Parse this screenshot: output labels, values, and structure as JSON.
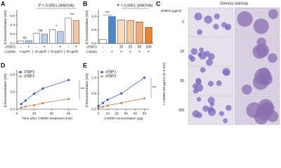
{
  "chart_data": [
    {
      "type": "bar",
      "label": "A",
      "ylabel": "β-hexosaminidase (OD)",
      "anova": "P < 0.0001 (ANOVA)",
      "row_labels": [
        "dTBP2",
        "C48/80"
      ],
      "categories": [
        "-",
        "+",
        "-",
        "+",
        "-",
        "+",
        "-",
        "+"
      ],
      "groups": [
        "0 µg/ml",
        "10 µg/ml",
        "20 µg/ml",
        "50 µg/ml"
      ],
      "values": [
        0.05,
        0.06,
        0.22,
        0.2,
        0.3,
        0.26,
        0.55,
        0.5
      ],
      "colors": [
        "#ffffff",
        "#b9cfee",
        "#ffffff",
        "#b9cfee",
        "#ffffff",
        "#b9cfee",
        "#ffffff",
        "#f5c9a0"
      ],
      "significance": [
        "ns",
        "ns",
        "*",
        "***"
      ],
      "ylim": [
        0,
        0.7
      ],
      "yticks": [
        {
          "value": 0,
          "label": "0.0"
        },
        0.2,
        0.4,
        0.6
      ]
    },
    {
      "type": "bar",
      "label": "B",
      "ylabel": "β-hexosaminidase (OD)",
      "anova": "P < 0.0001 (ANOVA)",
      "row_labels": [
        "dTBP2",
        "C48/80"
      ],
      "categories": [
        "-",
        "-",
        "10",
        "20",
        "50",
        "100"
      ],
      "categories2": [
        "-",
        "+",
        "+",
        "+",
        "+",
        "+"
      ],
      "values": [
        0.15,
        1.0,
        0.88,
        0.85,
        0.8,
        0.6
      ],
      "colors": [
        "#ffffff",
        "#4a86d0",
        "#f8dcc0",
        "#f5c69c",
        "#f0aa70",
        "#e8832e"
      ],
      "significance": "***",
      "ylim": [
        0,
        1.2
      ],
      "yticks": [
        {
          "value": 0,
          "label": "0.0"
        },
        0.5,
        {
          "value": 1,
          "label": "1.0"
        }
      ]
    },
    {
      "type": "line",
      "label": "D",
      "ylabel": "β-hexosaminidase (OD)",
      "xlabel": "Time after C48/80 treatment (min)",
      "x": [
        5,
        10,
        20,
        30,
        60
      ],
      "series": [
        {
          "name": "dTBP2",
          "color": "#2a4fa8",
          "marker": "square",
          "values": [
            0.15,
            0.25,
            0.45,
            0.6,
            0.85
          ]
        },
        {
          "name": "dTBP2",
          "color": "#b0703a",
          "marker": "triangle",
          "values": [
            0.05,
            0.08,
            0.12,
            0.18,
            0.3
          ]
        }
      ],
      "significance": "***",
      "xlim": [
        0,
        70
      ],
      "xticks": [
        0,
        20,
        40,
        60
      ],
      "ylim": [
        0,
        1.1
      ],
      "yticks": [
        {
          "value": 0,
          "label": "0.0"
        },
        0.5,
        {
          "value": 1,
          "label": "1.0"
        }
      ]
    },
    {
      "type": "line",
      "label": "E",
      "ylabel": "β-hexosaminidase (OD)",
      "xlabel": "C48/80 concentration (µg)",
      "x": [
        0,
        5,
        10,
        25,
        50
      ],
      "series": [
        {
          "name": "dTBP2",
          "color": "#2a4fa8",
          "marker": "square",
          "values": [
            0.1,
            0.2,
            0.3,
            0.5,
            1.0
          ]
        },
        {
          "name": "dTBP2",
          "color": "#b0703a",
          "marker": "triangle",
          "values": [
            0.05,
            0.08,
            0.12,
            0.2,
            0.35
          ]
        }
      ],
      "significance": "***",
      "xlim": [
        0,
        55
      ],
      "xticks": [
        0,
        10,
        20,
        30,
        40,
        50
      ],
      "ylim": [
        0,
        1.2
      ],
      "yticks": [
        {
          "value": 0,
          "label": "0.0"
        },
        0.5,
        {
          "value": 1,
          "label": "1.0"
        }
      ]
    }
  ],
  "panel_c": {
    "label": "C",
    "title": "Giemsa staining",
    "row_header": "dTBP2 (µg/ml)",
    "rows": [
      "0",
      "10",
      "50",
      "100"
    ],
    "side_label": "+ C48/80 (50 µg/ml, for 5 min)"
  }
}
